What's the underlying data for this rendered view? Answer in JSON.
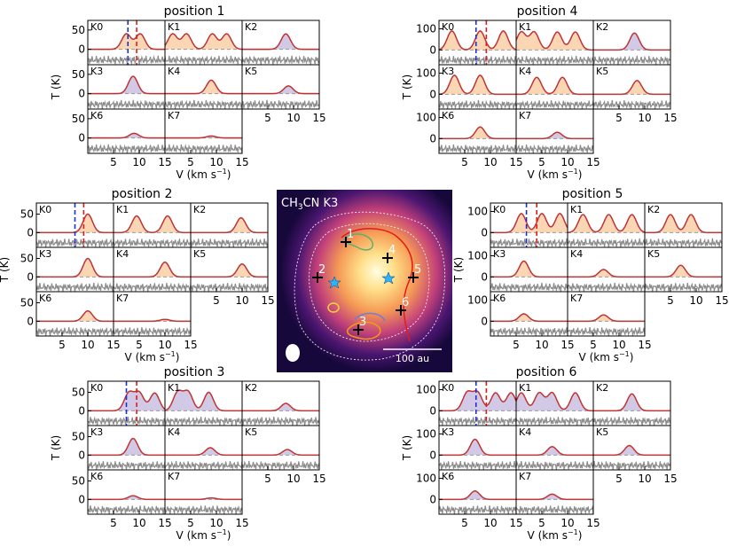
{
  "figure": {
    "panel_labels": [
      "K0",
      "K1",
      "K2",
      "K3",
      "K4",
      "K5",
      "K6",
      "K7"
    ],
    "ylabel": "T (K)",
    "xlabel_main": "V (km s",
    "xlabel_sup": "−1",
    "xlabel_close": ")",
    "xticks": [
      "5",
      "10",
      "15"
    ],
    "colors": {
      "fit": "#d62728",
      "model_orange": "#f5a55a",
      "model_purple": "#9b87c9",
      "data": "#8c8c8c",
      "vline_blue": "#1f2ecf",
      "vline_red": "#e31a1c"
    }
  },
  "map": {
    "title": "CH",
    "title_sub": "3",
    "title_rest": "CN K3",
    "scalebar_label": "100 au",
    "markers": [
      "1",
      "2",
      "3",
      "4",
      "5",
      "6"
    ]
  },
  "chart_data": [
    {
      "type": "line",
      "title": "position 1",
      "xlim": [
        0,
        15
      ],
      "yticks": [
        0,
        50
      ],
      "yrange": [
        -40,
        75
      ],
      "panels": [
        {
          "label": "K0",
          "peaks": [
            7.5,
            10.2
          ],
          "amp": 40,
          "model": "orange"
        },
        {
          "label": "K1",
          "peaks": [
            1.5,
            4.2,
            9.2,
            12.0
          ],
          "amp": 40,
          "model": "orange"
        },
        {
          "label": "K2",
          "peaks": [
            8.5
          ],
          "amp": 40,
          "model": "purple"
        },
        {
          "label": "K3",
          "peaks": [
            8.8
          ],
          "amp": 45,
          "model": "purple"
        },
        {
          "label": "K4",
          "peaks": [
            9.0
          ],
          "amp": 35,
          "model": "orange"
        },
        {
          "label": "K5",
          "peaks": [
            9.0
          ],
          "amp": 20,
          "model": "purple"
        },
        {
          "label": "K6",
          "peaks": [
            9.0
          ],
          "amp": 12,
          "model": "purple"
        },
        {
          "label": "K7",
          "peaks": [
            9.0
          ],
          "amp": 5,
          "model": "purple"
        }
      ],
      "vlines": {
        "blue": 7.8,
        "red": 9.5
      }
    },
    {
      "type": "line",
      "title": "position 2",
      "xlim": [
        0,
        15
      ],
      "yticks": [
        0,
        50
      ],
      "yrange": [
        -40,
        80
      ],
      "panels": [
        {
          "label": "K0",
          "peaks": [
            10.0
          ],
          "amp": 50,
          "model": "orange"
        },
        {
          "label": "K1",
          "peaks": [
            4.5,
            10.5
          ],
          "amp": 45,
          "model": "orange"
        },
        {
          "label": "K2",
          "peaks": [
            9.8
          ],
          "amp": 40,
          "model": "orange"
        },
        {
          "label": "K3",
          "peaks": [
            10.0
          ],
          "amp": 50,
          "model": "orange"
        },
        {
          "label": "K4",
          "peaks": [
            10.0
          ],
          "amp": 40,
          "model": "orange"
        },
        {
          "label": "K5",
          "peaks": [
            10.0
          ],
          "amp": 35,
          "model": "orange"
        },
        {
          "label": "K6",
          "peaks": [
            10.0
          ],
          "amp": 28,
          "model": "orange"
        },
        {
          "label": "K7",
          "peaks": [
            10.0
          ],
          "amp": 5,
          "model": "orange"
        }
      ],
      "vlines": {
        "blue": 7.5,
        "red": 9.2
      }
    },
    {
      "type": "line",
      "title": "position 3",
      "xlim": [
        0,
        15
      ],
      "yticks": [
        0,
        50
      ],
      "yrange": [
        -40,
        80
      ],
      "panels": [
        {
          "label": "K0",
          "peaks": [
            8.0,
            10.0,
            13.0
          ],
          "amp": 48,
          "model": "purple"
        },
        {
          "label": "K1",
          "peaks": [
            2.5,
            4.5,
            8.5
          ],
          "amp": 50,
          "model": "purple"
        },
        {
          "label": "K2",
          "peaks": [
            8.5
          ],
          "amp": 20,
          "model": "purple"
        },
        {
          "label": "K3",
          "peaks": [
            8.8
          ],
          "amp": 45,
          "model": "purple"
        },
        {
          "label": "K4",
          "peaks": [
            8.8
          ],
          "amp": 20,
          "model": "purple"
        },
        {
          "label": "K5",
          "peaks": [
            8.8
          ],
          "amp": 15,
          "model": "purple"
        },
        {
          "label": "K6",
          "peaks": [
            8.8
          ],
          "amp": 10,
          "model": "purple"
        },
        {
          "label": "K7",
          "peaks": [
            9.0
          ],
          "amp": 4,
          "model": "purple"
        }
      ],
      "vlines": {
        "blue": 7.5,
        "red": 9.5
      }
    },
    {
      "type": "line",
      "title": "position 4",
      "xlim": [
        0,
        15
      ],
      "yticks": [
        0,
        100
      ],
      "yrange": [
        -70,
        140
      ],
      "panels": [
        {
          "label": "K0",
          "peaks": [
            2.5,
            8.0,
            12.5
          ],
          "amp": 90,
          "model": "orange"
        },
        {
          "label": "K1",
          "peaks": [
            1.0,
            3.5,
            8.0,
            11.5
          ],
          "amp": 85,
          "model": "orange"
        },
        {
          "label": "K2",
          "peaks": [
            8.0
          ],
          "amp": 80,
          "model": "purple"
        },
        {
          "label": "K3",
          "peaks": [
            3.0,
            8.0
          ],
          "amp": 90,
          "model": "orange"
        },
        {
          "label": "K4",
          "peaks": [
            4.0,
            9.0
          ],
          "amp": 80,
          "model": "orange"
        },
        {
          "label": "K5",
          "peaks": [
            8.5
          ],
          "amp": 65,
          "model": "orange"
        },
        {
          "label": "K6",
          "peaks": [
            8.0
          ],
          "amp": 55,
          "model": "orange"
        },
        {
          "label": "K7",
          "peaks": [
            8.0
          ],
          "amp": 30,
          "model": "purple"
        }
      ],
      "vlines": {
        "blue": 7.2,
        "red": 9.2
      }
    },
    {
      "type": "line",
      "title": "position 5",
      "xlim": [
        0,
        15
      ],
      "yticks": [
        0,
        100
      ],
      "yrange": [
        -70,
        140
      ],
      "panels": [
        {
          "label": "K0",
          "peaks": [
            6.0,
            10.0,
            13.5
          ],
          "amp": 90,
          "model": "orange"
        },
        {
          "label": "K1",
          "peaks": [
            3.0,
            8.0,
            12.5
          ],
          "amp": 85,
          "model": "orange"
        },
        {
          "label": "K2",
          "peaks": [
            5.0,
            9.0
          ],
          "amp": 85,
          "model": "orange"
        },
        {
          "label": "K3",
          "peaks": [
            6.5
          ],
          "amp": 75,
          "model": "orange"
        },
        {
          "label": "K4",
          "peaks": [
            7.0
          ],
          "amp": 35,
          "model": "orange"
        },
        {
          "label": "K5",
          "peaks": [
            7.0
          ],
          "amp": 55,
          "model": "orange"
        },
        {
          "label": "K6",
          "peaks": [
            6.5
          ],
          "amp": 35,
          "model": "orange"
        },
        {
          "label": "K7",
          "peaks": [
            7.0
          ],
          "amp": 30,
          "model": "orange"
        }
      ],
      "vlines": {
        "blue": 7.0,
        "red": 9.0
      }
    },
    {
      "type": "line",
      "title": "position 6",
      "xlim": [
        0,
        15
      ],
      "yticks": [
        0,
        100
      ],
      "yrange": [
        -70,
        140
      ],
      "panels": [
        {
          "label": "K0",
          "peaks": [
            5.5,
            7.5,
            11.0,
            14.0
          ],
          "amp": 85,
          "model": "purple"
        },
        {
          "label": "K1",
          "peaks": [
            1.0,
            4.5,
            7.0,
            11.5
          ],
          "amp": 85,
          "model": "purple"
        },
        {
          "label": "K2",
          "peaks": [
            7.5
          ],
          "amp": 80,
          "model": "purple"
        },
        {
          "label": "K3",
          "peaks": [
            7.0
          ],
          "amp": 75,
          "model": "purple"
        },
        {
          "label": "K4",
          "peaks": [
            7.0
          ],
          "amp": 40,
          "model": "purple"
        },
        {
          "label": "K5",
          "peaks": [
            7.0
          ],
          "amp": 45,
          "model": "purple"
        },
        {
          "label": "K6",
          "peaks": [
            7.0
          ],
          "amp": 40,
          "model": "purple"
        },
        {
          "label": "K7",
          "peaks": [
            7.0
          ],
          "amp": 25,
          "model": "purple"
        }
      ],
      "vlines": {
        "blue": 7.2,
        "red": 9.2
      }
    }
  ]
}
